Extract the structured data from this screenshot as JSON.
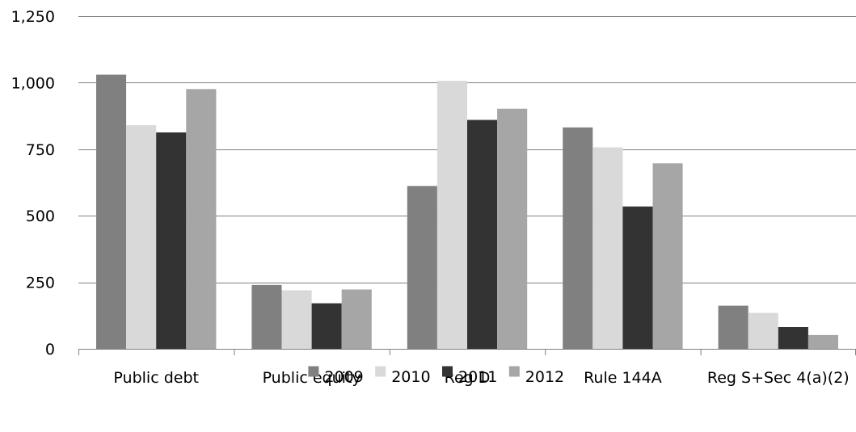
{
  "chart_data": {
    "type": "bar",
    "categories": [
      "Public debt",
      "Public equity",
      "Reg D",
      "Rule 144A",
      "Reg S+Sec 4(a)(2)"
    ],
    "series": [
      {
        "name": "2009",
        "color": "#808080",
        "values": [
          1030,
          240,
          612,
          832,
          162
        ]
      },
      {
        "name": "2010",
        "color": "#d9d9d9",
        "values": [
          840,
          220,
          1007,
          757,
          135
        ]
      },
      {
        "name": "2011",
        "color": "#333333",
        "values": [
          813,
          171,
          860,
          535,
          82
        ]
      },
      {
        "name": "2012",
        "color": "#a6a6a6",
        "values": [
          976,
          223,
          902,
          697,
          52
        ]
      }
    ],
    "yticks": [
      {
        "value": 0,
        "label": "0"
      },
      {
        "value": 250,
        "label": "250"
      },
      {
        "value": 500,
        "label": "500"
      },
      {
        "value": 750,
        "label": "750"
      },
      {
        "value": 1000,
        "label": "1,000"
      },
      {
        "value": 1250,
        "label": "1,250"
      }
    ],
    "ylim": [
      0,
      1250
    ],
    "title": "",
    "xlabel": "",
    "ylabel": "",
    "grid": true,
    "legend_position": "bottom-center",
    "gridline_color": "#808080",
    "axis_color": "#808080"
  }
}
